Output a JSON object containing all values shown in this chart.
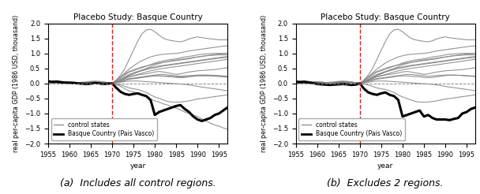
{
  "title": "Placebo Study: Basque Country",
  "ylabel": "real per-capita GDP (1986 USD, thouasand)",
  "xlabel": "year",
  "ylim": [
    -2.0,
    2.0
  ],
  "xlim": [
    1955,
    1997
  ],
  "vline_x": 1970,
  "years": [
    1955,
    1956,
    1957,
    1958,
    1959,
    1960,
    1961,
    1962,
    1963,
    1964,
    1965,
    1966,
    1967,
    1968,
    1969,
    1970,
    1971,
    1972,
    1973,
    1974,
    1975,
    1976,
    1977,
    1978,
    1979,
    1980,
    1981,
    1982,
    1983,
    1984,
    1985,
    1986,
    1987,
    1988,
    1989,
    1990,
    1991,
    1992,
    1993,
    1994,
    1995,
    1996,
    1997
  ],
  "caption_a": "(a)  Includes all control regions.",
  "caption_b": "(b)  Excludes 2 regions.",
  "basque_a": [
    0.07,
    0.05,
    0.06,
    0.04,
    0.03,
    0.02,
    0.01,
    0.0,
    -0.01,
    -0.02,
    -0.01,
    0.01,
    0.0,
    -0.02,
    -0.01,
    0.0,
    -0.15,
    -0.28,
    -0.35,
    -0.38,
    -0.35,
    -0.33,
    -0.38,
    -0.42,
    -0.55,
    -1.05,
    -0.95,
    -0.9,
    -0.85,
    -0.8,
    -0.75,
    -0.72,
    -0.85,
    -0.95,
    -1.1,
    -1.2,
    -1.25,
    -1.2,
    -1.15,
    -1.05,
    -1.0,
    -0.9,
    -0.8
  ],
  "basque_b": [
    0.05,
    0.04,
    0.05,
    0.03,
    0.01,
    -0.02,
    -0.03,
    -0.04,
    -0.05,
    -0.04,
    -0.03,
    -0.02,
    -0.03,
    -0.05,
    -0.04,
    0.0,
    -0.18,
    -0.3,
    -0.35,
    -0.38,
    -0.33,
    -0.3,
    -0.38,
    -0.42,
    -0.55,
    -1.1,
    -1.05,
    -1.0,
    -0.95,
    -0.9,
    -1.1,
    -1.05,
    -1.15,
    -1.2,
    -1.2,
    -1.2,
    -1.22,
    -1.18,
    -1.15,
    -1.0,
    -0.95,
    -0.85,
    -0.8
  ],
  "controls_a": [
    [
      0.05,
      0.04,
      0.05,
      0.03,
      0.02,
      0.02,
      0.01,
      0.0,
      0.01,
      0.02,
      0.03,
      0.02,
      0.01,
      0.0,
      0.01,
      0.0,
      0.05,
      0.1,
      0.18,
      0.22,
      0.25,
      0.28,
      0.3,
      0.32,
      0.35,
      0.38,
      0.4,
      0.38,
      0.35,
      0.33,
      0.3,
      0.32,
      0.35,
      0.38,
      0.4,
      0.42,
      0.43,
      0.44,
      0.45,
      0.46,
      0.48,
      0.5,
      0.52
    ],
    [
      0.08,
      0.06,
      0.07,
      0.05,
      0.04,
      0.03,
      0.02,
      0.01,
      0.02,
      0.03,
      0.05,
      0.06,
      0.05,
      0.04,
      0.03,
      0.0,
      0.08,
      0.18,
      0.28,
      0.38,
      0.42,
      0.48,
      0.52,
      0.58,
      0.62,
      0.68,
      0.72,
      0.75,
      0.78,
      0.8,
      0.82,
      0.85,
      0.88,
      0.9,
      0.92,
      0.95,
      0.97,
      0.98,
      0.99,
      1.0,
      1.0,
      1.0,
      1.0
    ],
    [
      0.06,
      0.05,
      0.06,
      0.04,
      0.03,
      0.04,
      0.03,
      0.02,
      0.02,
      0.03,
      0.04,
      0.05,
      0.04,
      0.03,
      0.02,
      0.0,
      0.1,
      0.22,
      0.32,
      0.4,
      0.45,
      0.5,
      0.55,
      0.58,
      0.62,
      0.65,
      0.68,
      0.7,
      0.72,
      0.74,
      0.76,
      0.78,
      0.8,
      0.82,
      0.85,
      0.88,
      0.9,
      0.92,
      0.93,
      0.94,
      0.95,
      0.95,
      0.95
    ],
    [
      0.1,
      0.08,
      0.09,
      0.07,
      0.05,
      0.06,
      0.05,
      0.03,
      0.04,
      0.05,
      0.07,
      0.08,
      0.07,
      0.05,
      0.03,
      0.0,
      0.12,
      0.28,
      0.5,
      0.8,
      1.1,
      1.4,
      1.65,
      1.78,
      1.8,
      1.72,
      1.6,
      1.5,
      1.45,
      1.42,
      1.4,
      1.38,
      1.42,
      1.48,
      1.52,
      1.55,
      1.52,
      1.5,
      1.48,
      1.47,
      1.45,
      1.45,
      1.45
    ],
    [
      0.04,
      0.03,
      0.04,
      0.03,
      0.02,
      0.02,
      0.01,
      0.01,
      0.02,
      0.02,
      0.03,
      0.03,
      0.02,
      0.01,
      0.01,
      0.0,
      0.06,
      0.14,
      0.22,
      0.3,
      0.35,
      0.4,
      0.45,
      0.48,
      0.52,
      0.55,
      0.58,
      0.6,
      0.62,
      0.64,
      0.66,
      0.68,
      0.7,
      0.72,
      0.74,
      0.76,
      0.78,
      0.8,
      0.82,
      0.84,
      0.86,
      0.88,
      0.9
    ],
    [
      0.06,
      0.05,
      0.05,
      0.04,
      0.03,
      0.03,
      0.02,
      0.02,
      0.02,
      0.03,
      0.04,
      0.03,
      0.03,
      0.02,
      0.01,
      0.0,
      0.04,
      0.08,
      0.12,
      0.16,
      0.18,
      0.2,
      0.22,
      0.24,
      0.26,
      0.28,
      0.3,
      0.3,
      0.28,
      0.27,
      0.25,
      0.24,
      0.25,
      0.26,
      0.27,
      0.28,
      0.28,
      0.28,
      0.27,
      0.26,
      0.25,
      0.24,
      0.23
    ],
    [
      0.03,
      0.02,
      0.02,
      0.02,
      0.01,
      0.01,
      0.01,
      0.0,
      0.0,
      0.01,
      0.01,
      0.02,
      0.01,
      0.01,
      0.0,
      0.0,
      0.02,
      0.04,
      0.06,
      0.08,
      0.08,
      0.08,
      0.07,
      0.06,
      0.05,
      0.04,
      0.03,
      0.02,
      0.01,
      0.0,
      -0.01,
      -0.02,
      -0.03,
      -0.05,
      -0.07,
      -0.1,
      -0.12,
      -0.14,
      -0.16,
      -0.18,
      -0.2,
      -0.22,
      -0.25
    ],
    [
      0.07,
      0.06,
      0.07,
      0.05,
      0.04,
      0.05,
      0.04,
      0.03,
      0.03,
      0.04,
      0.05,
      0.06,
      0.05,
      0.04,
      0.02,
      0.0,
      -0.04,
      -0.1,
      -0.18,
      -0.25,
      -0.28,
      -0.32,
      -0.38,
      -0.45,
      -0.52,
      -0.58,
      -0.62,
      -0.68,
      -0.72,
      -0.78,
      -0.82,
      -0.88,
      -0.95,
      -1.0,
      -1.05,
      -1.1,
      -1.18,
      -1.25,
      -1.32,
      -1.38,
      -1.42,
      -1.48,
      -1.52
    ],
    [
      0.05,
      0.04,
      0.05,
      0.04,
      0.03,
      0.03,
      0.02,
      0.01,
      0.02,
      0.03,
      0.04,
      0.04,
      0.03,
      0.02,
      0.01,
      0.0,
      0.06,
      0.12,
      0.2,
      0.28,
      0.32,
      0.38,
      0.42,
      0.46,
      0.5,
      0.52,
      0.55,
      0.58,
      0.6,
      0.62,
      0.64,
      0.66,
      0.68,
      0.7,
      0.72,
      0.74,
      0.76,
      0.78,
      0.8,
      0.82,
      0.84,
      0.85,
      0.86
    ],
    [
      0.04,
      0.03,
      0.03,
      0.03,
      0.02,
      0.02,
      0.01,
      0.01,
      0.01,
      0.02,
      0.02,
      0.03,
      0.02,
      0.02,
      0.01,
      0.0,
      0.03,
      0.06,
      0.1,
      0.14,
      0.16,
      0.18,
      0.2,
      0.22,
      0.24,
      0.25,
      0.25,
      0.24,
      0.23,
      0.22,
      0.2,
      0.19,
      0.2,
      0.22,
      0.24,
      0.26,
      0.27,
      0.27,
      0.27,
      0.27,
      0.26,
      0.25,
      0.24
    ],
    [
      0.06,
      0.05,
      0.05,
      0.04,
      0.03,
      0.03,
      0.02,
      0.02,
      0.02,
      0.03,
      0.04,
      0.04,
      0.03,
      0.02,
      0.02,
      0.0,
      0.05,
      0.1,
      0.16,
      0.22,
      0.26,
      0.3,
      0.34,
      0.38,
      0.42,
      0.45,
      0.48,
      0.5,
      0.52,
      0.54,
      0.56,
      0.58,
      0.6,
      0.62,
      0.64,
      0.66,
      0.68,
      0.7,
      0.72,
      0.74,
      0.76,
      0.78,
      0.8
    ],
    [
      0.04,
      0.03,
      0.03,
      0.02,
      0.02,
      0.02,
      0.01,
      0.01,
      0.01,
      0.02,
      0.02,
      0.03,
      0.02,
      0.01,
      0.01,
      0.0,
      0.04,
      0.1,
      0.18,
      0.26,
      0.32,
      0.38,
      0.44,
      0.5,
      0.56,
      0.62,
      0.66,
      0.7,
      0.73,
      0.76,
      0.78,
      0.8,
      0.82,
      0.84,
      0.86,
      0.88,
      0.9,
      0.92,
      0.94,
      0.96,
      0.98,
      0.99,
      1.0
    ],
    [
      0.03,
      0.02,
      0.02,
      0.02,
      0.01,
      0.01,
      0.01,
      0.0,
      0.01,
      0.01,
      0.02,
      0.02,
      0.02,
      0.01,
      0.01,
      0.0,
      0.03,
      0.06,
      0.1,
      0.14,
      0.16,
      0.18,
      0.2,
      0.22,
      0.24,
      0.25,
      0.25,
      0.25,
      0.24,
      0.23,
      0.22,
      0.21,
      0.22,
      0.23,
      0.24,
      0.25,
      0.25,
      0.25,
      0.25,
      0.24,
      0.23,
      0.22,
      0.21
    ],
    [
      0.05,
      0.04,
      0.05,
      0.03,
      0.02,
      0.02,
      0.02,
      0.01,
      0.01,
      0.02,
      0.03,
      0.03,
      0.02,
      0.01,
      0.01,
      0.0,
      -0.02,
      -0.05,
      -0.1,
      -0.15,
      -0.18,
      -0.2,
      -0.25,
      -0.3,
      -0.38,
      -0.45,
      -0.5,
      -0.55,
      -0.6,
      -0.62,
      -0.62,
      -0.62,
      -0.6,
      -0.58,
      -0.55,
      -0.52,
      -0.5,
      -0.48,
      -0.46,
      -0.44,
      -0.42,
      -0.4,
      -0.38
    ],
    [
      0.08,
      0.07,
      0.08,
      0.06,
      0.05,
      0.05,
      0.04,
      0.03,
      0.03,
      0.04,
      0.06,
      0.06,
      0.05,
      0.04,
      0.03,
      0.0,
      0.1,
      0.22,
      0.35,
      0.48,
      0.58,
      0.68,
      0.76,
      0.82,
      0.88,
      0.92,
      0.95,
      0.97,
      0.98,
      0.99,
      1.0,
      1.02,
      1.05,
      1.08,
      1.1,
      1.12,
      1.14,
      1.16,
      1.18,
      1.2,
      1.22,
      1.24,
      1.25
    ]
  ],
  "controls_b": [
    [
      0.05,
      0.04,
      0.05,
      0.03,
      0.02,
      0.02,
      0.01,
      0.0,
      0.01,
      0.02,
      0.03,
      0.02,
      0.01,
      0.0,
      0.01,
      0.0,
      0.05,
      0.1,
      0.18,
      0.22,
      0.25,
      0.28,
      0.3,
      0.32,
      0.35,
      0.38,
      0.4,
      0.38,
      0.35,
      0.33,
      0.3,
      0.32,
      0.35,
      0.38,
      0.4,
      0.42,
      0.43,
      0.44,
      0.45,
      0.46,
      0.48,
      0.5,
      0.52
    ],
    [
      0.08,
      0.06,
      0.07,
      0.05,
      0.04,
      0.03,
      0.02,
      0.01,
      0.02,
      0.03,
      0.05,
      0.06,
      0.05,
      0.04,
      0.03,
      0.0,
      0.08,
      0.18,
      0.28,
      0.38,
      0.42,
      0.48,
      0.52,
      0.58,
      0.62,
      0.68,
      0.72,
      0.75,
      0.78,
      0.8,
      0.82,
      0.85,
      0.88,
      0.9,
      0.92,
      0.95,
      0.97,
      0.98,
      0.99,
      1.0,
      1.0,
      1.0,
      1.0
    ],
    [
      0.06,
      0.05,
      0.06,
      0.04,
      0.03,
      0.04,
      0.03,
      0.02,
      0.02,
      0.03,
      0.04,
      0.05,
      0.04,
      0.03,
      0.02,
      0.0,
      0.1,
      0.22,
      0.32,
      0.4,
      0.45,
      0.5,
      0.55,
      0.58,
      0.62,
      0.65,
      0.68,
      0.7,
      0.72,
      0.74,
      0.76,
      0.78,
      0.8,
      0.82,
      0.85,
      0.88,
      0.9,
      0.92,
      0.93,
      0.94,
      0.95,
      0.95,
      0.95
    ],
    [
      0.1,
      0.08,
      0.09,
      0.07,
      0.05,
      0.06,
      0.05,
      0.03,
      0.04,
      0.05,
      0.07,
      0.08,
      0.07,
      0.05,
      0.03,
      0.0,
      0.12,
      0.28,
      0.5,
      0.8,
      1.1,
      1.4,
      1.65,
      1.78,
      1.8,
      1.72,
      1.6,
      1.5,
      1.45,
      1.42,
      1.4,
      1.38,
      1.42,
      1.48,
      1.52,
      1.55,
      1.52,
      1.5,
      1.48,
      1.47,
      1.45,
      1.45,
      1.45
    ],
    [
      0.04,
      0.03,
      0.04,
      0.03,
      0.02,
      0.02,
      0.01,
      0.01,
      0.02,
      0.02,
      0.03,
      0.03,
      0.02,
      0.01,
      0.01,
      0.0,
      0.06,
      0.14,
      0.22,
      0.3,
      0.35,
      0.4,
      0.45,
      0.48,
      0.52,
      0.55,
      0.58,
      0.6,
      0.62,
      0.64,
      0.66,
      0.68,
      0.7,
      0.72,
      0.74,
      0.76,
      0.78,
      0.8,
      0.82,
      0.84,
      0.86,
      0.88,
      0.9
    ],
    [
      0.06,
      0.05,
      0.05,
      0.04,
      0.03,
      0.03,
      0.02,
      0.02,
      0.02,
      0.03,
      0.04,
      0.03,
      0.03,
      0.02,
      0.01,
      0.0,
      0.04,
      0.08,
      0.12,
      0.16,
      0.18,
      0.2,
      0.22,
      0.24,
      0.26,
      0.28,
      0.3,
      0.3,
      0.28,
      0.27,
      0.25,
      0.24,
      0.25,
      0.26,
      0.27,
      0.28,
      0.28,
      0.28,
      0.27,
      0.26,
      0.25,
      0.24,
      0.23
    ],
    [
      0.03,
      0.02,
      0.02,
      0.02,
      0.01,
      0.01,
      0.01,
      0.0,
      0.0,
      0.01,
      0.01,
      0.02,
      0.01,
      0.01,
      0.0,
      0.0,
      0.02,
      0.04,
      0.06,
      0.08,
      0.08,
      0.08,
      0.07,
      0.06,
      0.05,
      0.04,
      0.03,
      0.02,
      0.01,
      0.0,
      -0.01,
      -0.02,
      -0.03,
      -0.05,
      -0.07,
      -0.1,
      -0.12,
      -0.14,
      -0.16,
      -0.18,
      -0.2,
      -0.22,
      -0.25
    ],
    [
      0.05,
      0.04,
      0.05,
      0.04,
      0.03,
      0.03,
      0.02,
      0.01,
      0.02,
      0.03,
      0.04,
      0.04,
      0.03,
      0.02,
      0.01,
      0.0,
      0.06,
      0.12,
      0.2,
      0.28,
      0.32,
      0.38,
      0.42,
      0.46,
      0.5,
      0.52,
      0.55,
      0.58,
      0.6,
      0.62,
      0.64,
      0.66,
      0.68,
      0.7,
      0.72,
      0.74,
      0.76,
      0.78,
      0.8,
      0.82,
      0.84,
      0.85,
      0.86
    ],
    [
      0.04,
      0.03,
      0.03,
      0.03,
      0.02,
      0.02,
      0.01,
      0.01,
      0.01,
      0.02,
      0.02,
      0.03,
      0.02,
      0.02,
      0.01,
      0.0,
      0.03,
      0.06,
      0.1,
      0.14,
      0.16,
      0.18,
      0.2,
      0.22,
      0.24,
      0.25,
      0.25,
      0.24,
      0.23,
      0.22,
      0.2,
      0.19,
      0.2,
      0.22,
      0.24,
      0.26,
      0.27,
      0.27,
      0.27,
      0.27,
      0.26,
      0.25,
      0.24
    ],
    [
      0.06,
      0.05,
      0.05,
      0.04,
      0.03,
      0.03,
      0.02,
      0.02,
      0.02,
      0.03,
      0.04,
      0.04,
      0.03,
      0.02,
      0.02,
      0.0,
      0.05,
      0.1,
      0.16,
      0.22,
      0.26,
      0.3,
      0.34,
      0.38,
      0.42,
      0.45,
      0.48,
      0.5,
      0.52,
      0.54,
      0.56,
      0.58,
      0.6,
      0.62,
      0.64,
      0.66,
      0.68,
      0.7,
      0.72,
      0.74,
      0.76,
      0.78,
      0.8
    ],
    [
      0.04,
      0.03,
      0.03,
      0.02,
      0.02,
      0.02,
      0.01,
      0.01,
      0.01,
      0.02,
      0.02,
      0.03,
      0.02,
      0.01,
      0.01,
      0.0,
      0.04,
      0.1,
      0.18,
      0.26,
      0.32,
      0.38,
      0.44,
      0.5,
      0.56,
      0.62,
      0.66,
      0.7,
      0.73,
      0.76,
      0.78,
      0.8,
      0.82,
      0.84,
      0.86,
      0.88,
      0.9,
      0.92,
      0.94,
      0.96,
      0.98,
      0.99,
      1.0
    ],
    [
      0.05,
      0.04,
      0.05,
      0.03,
      0.02,
      0.02,
      0.02,
      0.01,
      0.01,
      0.02,
      0.03,
      0.03,
      0.02,
      0.01,
      0.01,
      0.0,
      -0.02,
      -0.05,
      -0.1,
      -0.15,
      -0.18,
      -0.2,
      -0.25,
      -0.3,
      -0.38,
      -0.45,
      -0.5,
      -0.55,
      -0.6,
      -0.62,
      -0.62,
      -0.62,
      -0.6,
      -0.58,
      -0.55,
      -0.52,
      -0.5,
      -0.48,
      -0.46,
      -0.44,
      -0.42,
      -0.4,
      -0.38
    ],
    [
      0.08,
      0.07,
      0.08,
      0.06,
      0.05,
      0.05,
      0.04,
      0.03,
      0.03,
      0.04,
      0.06,
      0.06,
      0.05,
      0.04,
      0.03,
      0.0,
      0.1,
      0.22,
      0.35,
      0.48,
      0.58,
      0.68,
      0.76,
      0.82,
      0.88,
      0.92,
      0.95,
      0.97,
      0.98,
      0.99,
      1.0,
      1.02,
      1.05,
      1.08,
      1.1,
      1.12,
      1.14,
      1.16,
      1.18,
      1.2,
      1.22,
      1.24,
      1.25
    ]
  ],
  "control_color": "#888888",
  "basque_color": "#000000",
  "vline_color": "#cc2222",
  "hline_color": "#888888",
  "yticks": [
    -2.0,
    -1.5,
    -1.0,
    -0.5,
    0.0,
    0.5,
    1.0,
    1.5,
    2.0
  ],
  "xticks": [
    1955,
    1960,
    1965,
    1970,
    1975,
    1980,
    1985,
    1990,
    1995
  ]
}
